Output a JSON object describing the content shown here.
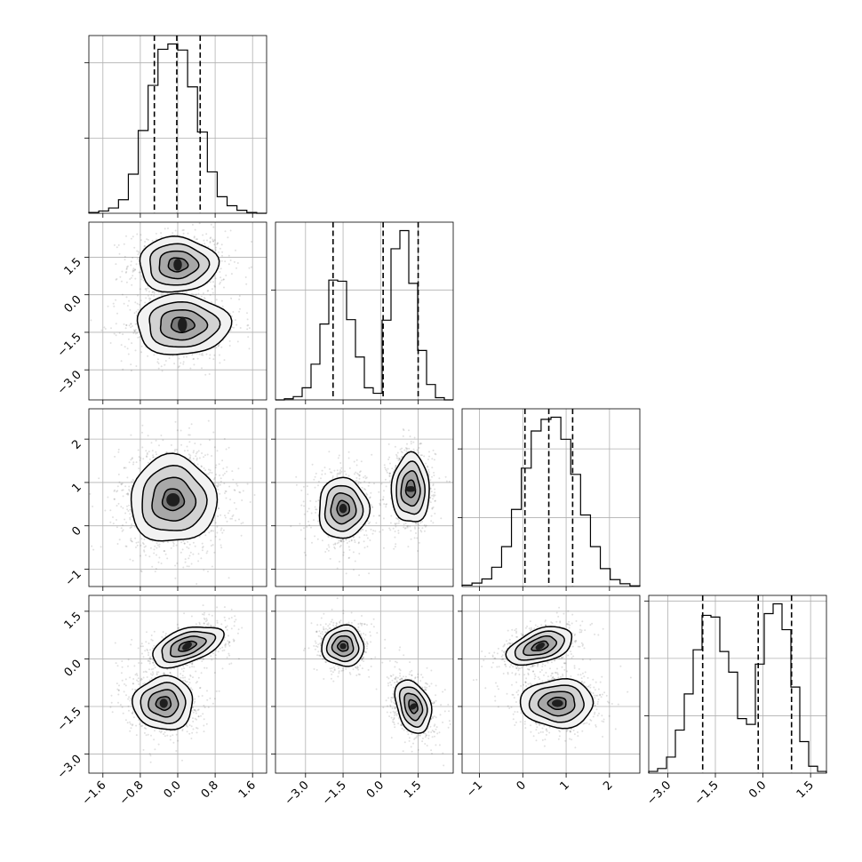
{
  "chart_data": {
    "type": "corner",
    "parameters": [
      {
        "ticks": [
          -1.6,
          -0.8,
          0.0,
          0.8,
          1.6
        ],
        "tick_labels": [
          "−1.6",
          "−0.8",
          "0.0",
          "0.8",
          "1.6"
        ],
        "range": [
          -1.9,
          1.9
        ]
      },
      {
        "ticks": [
          -3.0,
          -1.5,
          0.0,
          1.5
        ],
        "tick_labels": [
          "−3.0",
          "−1.5",
          "0.0",
          "1.5"
        ],
        "range": [
          -4.2,
          2.9
        ]
      },
      {
        "ticks": [
          -1,
          0,
          1,
          2
        ],
        "tick_labels": [
          "−1",
          "0",
          "1",
          "2"
        ],
        "range": [
          -1.4,
          2.7
        ]
      },
      {
        "ticks": [
          -3.0,
          -1.5,
          0.0,
          1.5
        ],
        "tick_labels": [
          "−3.0",
          "−1.5",
          "0.0",
          "1.5"
        ],
        "range": [
          -3.6,
          2.0
        ]
      }
    ],
    "histograms": [
      {
        "edges_range": [
          -1.9,
          1.9
        ],
        "counts": [
          1,
          3,
          7,
          18,
          52,
          110,
          170,
          218,
          225,
          217,
          168,
          108,
          55,
          22,
          10,
          4,
          1,
          0
        ],
        "quantiles": [
          -0.5,
          -0.02,
          0.48
        ]
      },
      {
        "edges_range": [
          -4.2,
          2.9
        ],
        "counts": [
          0,
          2,
          6,
          22,
          65,
          138,
          218,
          216,
          146,
          78,
          22,
          12,
          145,
          275,
          308,
          212,
          90,
          28,
          4,
          0
        ],
        "quantiles": [
          -1.9,
          0.1,
          1.5
        ]
      },
      {
        "edges_range": [
          -1.4,
          2.7
        ],
        "counts": [
          2,
          5,
          11,
          28,
          58,
          112,
          172,
          226,
          243,
          246,
          214,
          163,
          104,
          58,
          26,
          10,
          4,
          1
        ],
        "quantiles": [
          0.05,
          0.6,
          1.15
        ]
      },
      {
        "edges_range": [
          -3.6,
          2.0
        ],
        "counts": [
          3,
          8,
          28,
          75,
          138,
          215,
          275,
          272,
          212,
          176,
          95,
          85,
          190,
          278,
          295,
          250,
          150,
          55,
          12,
          3
        ],
        "quantiles": [
          -1.9,
          -0.15,
          0.9
        ]
      }
    ],
    "pairs": [
      {
        "x": 0,
        "y": 1,
        "clusters": [
          {
            "cx": 0.0,
            "cy": 1.2,
            "sx": 0.42,
            "sy": 0.55,
            "rho": 0
          },
          {
            "cx": 0.1,
            "cy": -1.2,
            "sx": 0.5,
            "sy": 0.6,
            "rho": 0
          }
        ]
      },
      {
        "x": 0,
        "y": 2,
        "clusters": [
          {
            "cx": -0.1,
            "cy": 0.6,
            "sx": 0.46,
            "sy": 0.5,
            "rho": 0
          }
        ]
      },
      {
        "x": 1,
        "y": 2,
        "clusters": [
          {
            "cx": -1.5,
            "cy": 0.4,
            "sx": 0.5,
            "sy": 0.35,
            "rho": 0
          },
          {
            "cx": 1.2,
            "cy": 0.85,
            "sx": 0.38,
            "sy": 0.4,
            "rho": 0
          }
        ]
      },
      {
        "x": 0,
        "y": 3,
        "clusters": [
          {
            "cx": 0.2,
            "cy": 0.4,
            "sx": 0.38,
            "sy": 0.32,
            "rho": 0.5
          },
          {
            "cx": -0.3,
            "cy": -1.4,
            "sx": 0.32,
            "sy": 0.42,
            "rho": 0
          }
        ]
      },
      {
        "x": 1,
        "y": 3,
        "clusters": [
          {
            "cx": -1.5,
            "cy": 0.4,
            "sx": 0.42,
            "sy": 0.32,
            "rho": 0
          },
          {
            "cx": 1.3,
            "cy": -1.5,
            "sx": 0.36,
            "sy": 0.42,
            "rho": -0.3
          }
        ]
      },
      {
        "x": 2,
        "y": 3,
        "clusters": [
          {
            "cx": 0.4,
            "cy": 0.4,
            "sx": 0.38,
            "sy": 0.3,
            "rho": 0.45
          },
          {
            "cx": 0.8,
            "cy": -1.4,
            "sx": 0.42,
            "sy": 0.38,
            "rho": 0
          }
        ]
      }
    ],
    "contour_levels_sigma": [
      0.5,
      1.0,
      1.5,
      2.0
    ],
    "xlabel": "",
    "ylabel": "",
    "title": ""
  }
}
